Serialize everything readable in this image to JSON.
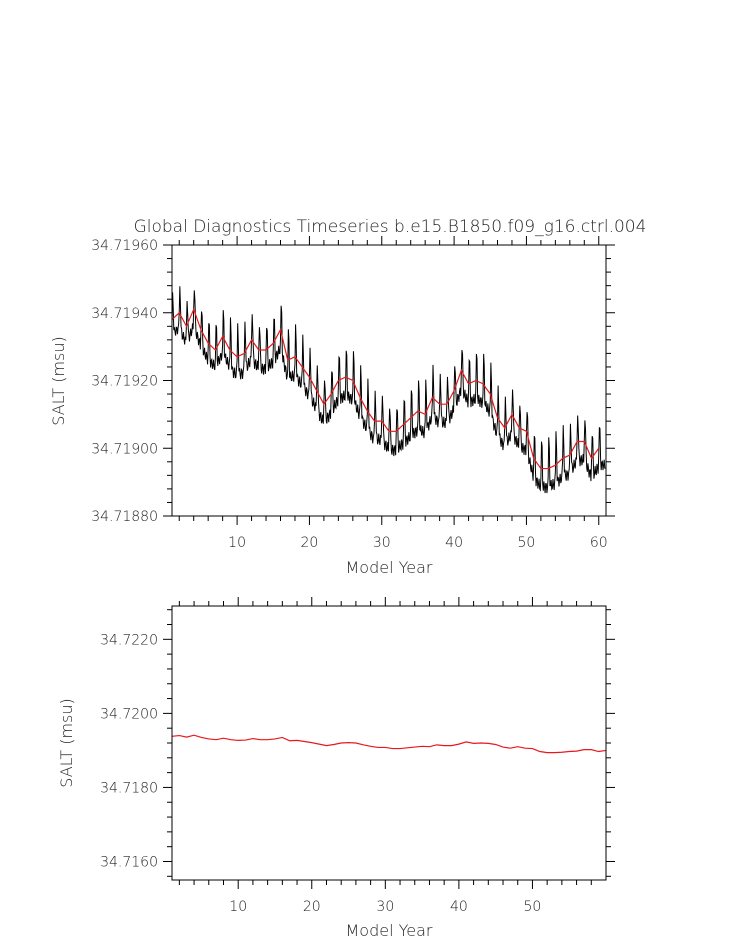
{
  "chart_data": [
    {
      "type": "line",
      "title": "Global Diagnostics Timeseries b.e15.B1850.f09_g16.ctrl.004",
      "xlabel": "Model Year",
      "ylabel": "SALT (msu)",
      "xlim": [
        1,
        61
      ],
      "ylim": [
        34.7188,
        34.7196
      ],
      "xticks": [
        10,
        20,
        30,
        40,
        50,
        60
      ],
      "yticks": [
        34.7188,
        34.719,
        34.7192,
        34.7194,
        34.7196
      ],
      "ytick_labels": [
        "34.71880",
        "34.71900",
        "34.71920",
        "34.71940",
        "34.71960"
      ],
      "series": [
        {
          "kind": "monthly",
          "color": "#000000",
          "annual_mean": [
            34.71938,
            34.7194,
            34.71936,
            34.71941,
            34.71935,
            34.71931,
            34.71929,
            34.71933,
            34.71929,
            34.71927,
            34.71928,
            34.71932,
            34.71929,
            34.71929,
            34.71931,
            34.71935,
            34.71926,
            34.71927,
            34.71924,
            34.71921,
            34.71917,
            34.71913,
            34.71916,
            34.7192,
            34.71921,
            34.7192,
            34.71915,
            34.71911,
            34.71908,
            34.71908,
            34.71905,
            34.71905,
            34.71907,
            34.71909,
            34.71911,
            34.7191,
            34.71915,
            34.71913,
            34.71913,
            34.71917,
            34.71923,
            34.71919,
            34.7192,
            34.71919,
            34.71916,
            34.71909,
            34.71906,
            34.7191,
            34.71906,
            34.71905,
            34.71897,
            34.71894,
            34.71894,
            34.71895,
            34.71897,
            34.71898,
            34.71902,
            34.71902,
            34.71897,
            34.719
          ],
          "amplitude": [
            8,
            9,
            9,
            9,
            9,
            9,
            9,
            9,
            10,
            10,
            10,
            10,
            10,
            10,
            10,
            10,
            10,
            10,
            10,
            10,
            10,
            10,
            10,
            10,
            10,
            10,
            10,
            10,
            10,
            10,
            10,
            10,
            10,
            10,
            10,
            10,
            10,
            10,
            10,
            10,
            10,
            10,
            10,
            10,
            10,
            10,
            10,
            10,
            10,
            10,
            10,
            10,
            10,
            10,
            10,
            10,
            10,
            10,
            10,
            9
          ]
        },
        {
          "kind": "annual",
          "color": "#e8191c",
          "x": [
            1,
            2,
            3,
            4,
            5,
            6,
            7,
            8,
            9,
            10,
            11,
            12,
            13,
            14,
            15,
            16,
            17,
            18,
            19,
            20,
            21,
            22,
            23,
            24,
            25,
            26,
            27,
            28,
            29,
            30,
            31,
            32,
            33,
            34,
            35,
            36,
            37,
            38,
            39,
            40,
            41,
            42,
            43,
            44,
            45,
            46,
            47,
            48,
            49,
            50,
            51,
            52,
            53,
            54,
            55,
            56,
            57,
            58,
            59,
            60
          ],
          "y": [
            34.71938,
            34.7194,
            34.71936,
            34.71941,
            34.71935,
            34.71931,
            34.71929,
            34.71933,
            34.71929,
            34.71927,
            34.71928,
            34.71932,
            34.71929,
            34.71929,
            34.71931,
            34.71935,
            34.71926,
            34.71927,
            34.71924,
            34.71921,
            34.71917,
            34.71913,
            34.71916,
            34.7192,
            34.71921,
            34.7192,
            34.71915,
            34.71911,
            34.71908,
            34.71908,
            34.71905,
            34.71905,
            34.71907,
            34.71909,
            34.71911,
            34.7191,
            34.71915,
            34.71913,
            34.71913,
            34.71917,
            34.71923,
            34.71919,
            34.7192,
            34.71919,
            34.71916,
            34.71909,
            34.71906,
            34.7191,
            34.71906,
            34.71905,
            34.71897,
            34.71894,
            34.71894,
            34.71895,
            34.71897,
            34.71898,
            34.71902,
            34.71902,
            34.71897,
            34.719
          ]
        }
      ]
    },
    {
      "type": "line",
      "title": "",
      "xlabel": "Model Year",
      "ylabel": "SALT (msu)",
      "xlim": [
        1,
        60
      ],
      "ylim": [
        34.7155,
        34.7229
      ],
      "xticks": [
        10,
        20,
        30,
        40,
        50
      ],
      "yticks": [
        34.716,
        34.718,
        34.72,
        34.722
      ],
      "ytick_labels": [
        "34.7160",
        "34.7180",
        "34.7200",
        "34.7220"
      ],
      "series": [
        {
          "kind": "annual",
          "color": "#e8191c",
          "x": [
            1,
            2,
            3,
            4,
            5,
            6,
            7,
            8,
            9,
            10,
            11,
            12,
            13,
            14,
            15,
            16,
            17,
            18,
            19,
            20,
            21,
            22,
            23,
            24,
            25,
            26,
            27,
            28,
            29,
            30,
            31,
            32,
            33,
            34,
            35,
            36,
            37,
            38,
            39,
            40,
            41,
            42,
            43,
            44,
            45,
            46,
            47,
            48,
            49,
            50,
            51,
            52,
            53,
            54,
            55,
            56,
            57,
            58,
            59,
            60
          ],
          "y": [
            34.71938,
            34.7194,
            34.71936,
            34.71941,
            34.71935,
            34.71931,
            34.71929,
            34.71933,
            34.71929,
            34.71927,
            34.71928,
            34.71932,
            34.71929,
            34.71929,
            34.71931,
            34.71935,
            34.71926,
            34.71927,
            34.71924,
            34.71921,
            34.71917,
            34.71913,
            34.71916,
            34.7192,
            34.71921,
            34.7192,
            34.71915,
            34.71911,
            34.71908,
            34.71908,
            34.71905,
            34.71905,
            34.71907,
            34.71909,
            34.71911,
            34.7191,
            34.71915,
            34.71913,
            34.71913,
            34.71917,
            34.71923,
            34.71919,
            34.7192,
            34.71919,
            34.71916,
            34.71909,
            34.71906,
            34.7191,
            34.71906,
            34.71905,
            34.71897,
            34.71894,
            34.71894,
            34.71895,
            34.71897,
            34.71898,
            34.71902,
            34.71902,
            34.71897,
            34.719
          ]
        }
      ]
    }
  ]
}
